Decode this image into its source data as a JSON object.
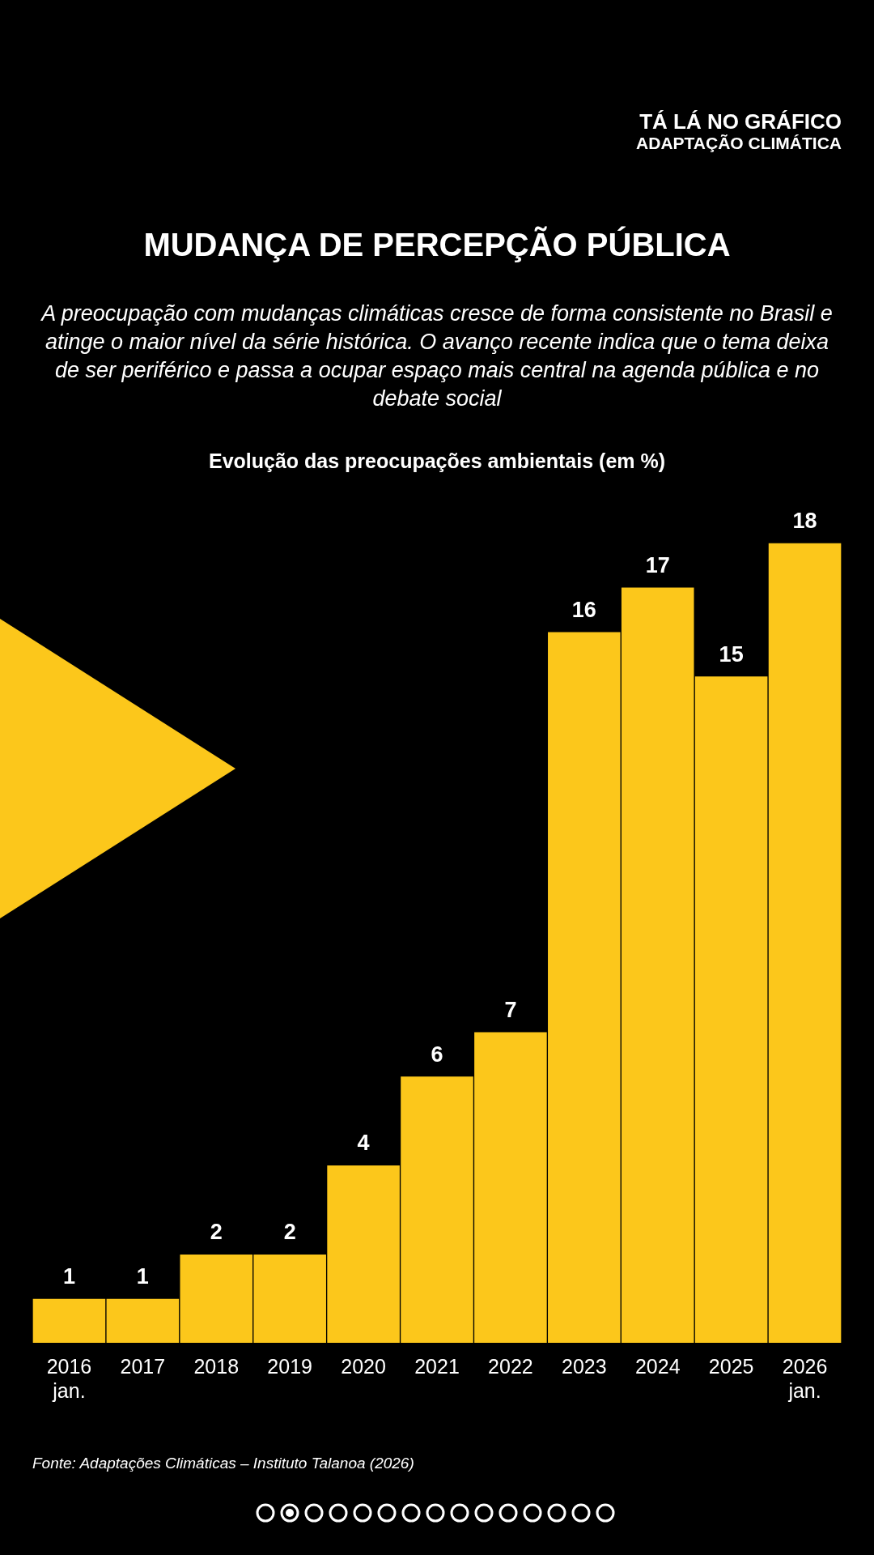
{
  "chart_data": {
    "type": "bar",
    "title": "MUDANÇA DE PERCEPÇÃO PÚBLICA",
    "subtitle": "A preocupação com mudanças climáticas cresce de forma consistente no Brasil e atinge o maior nível da série histórica. O avanço recente indica que o tema deixa de ser periférico e passa a ocupar espaço mais central na agenda pública e no debate social",
    "annotations": [
      "TÁ LÁ NO GRÁFICO",
      "ADAPTAÇÃO CLIMÁTICA",
      "Evolução das preocupações ambientais (em %)",
      "Fonte: Adaptações Climáticas – Instituto Talanoa (2026)"
    ],
    "categories": [
      "2016\njan.",
      "2017",
      "2018",
      "2019",
      "2020",
      "2021",
      "2022",
      "2023",
      "2024",
      "2025",
      "2026\njan."
    ],
    "values": [
      1,
      1,
      2,
      2,
      4,
      6,
      7,
      16,
      17,
      15,
      18
    ],
    "color": "#fcc71b",
    "data_labels": true,
    "grid": false,
    "legend": false
  }
}
